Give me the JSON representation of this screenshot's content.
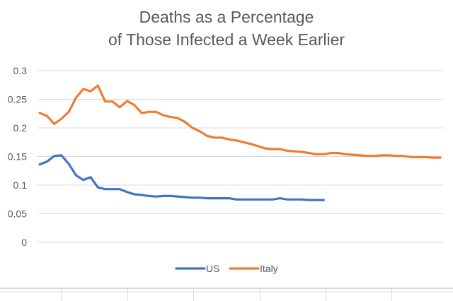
{
  "chart_data": {
    "type": "line",
    "title": "Deaths as a Percentage of Those Infected a Week Earlier",
    "title_lines": [
      "Deaths as a Percentage",
      "of Those Infected a Week Earlier"
    ],
    "xlabel": "",
    "ylabel": "",
    "ylim": [
      0,
      0.3
    ],
    "yticks": [
      "0",
      "0.05",
      "0.1",
      "0.15",
      "0.2",
      "0.25",
      "0.3"
    ],
    "ytick_values": [
      0,
      0.05,
      0.1,
      0.15,
      0.2,
      0.25,
      0.3
    ],
    "grid": true,
    "legend_position": "bottom",
    "x_count": 56,
    "series": [
      {
        "name": "US",
        "color": "#4472C4",
        "values": [
          0.136,
          0.141,
          0.151,
          0.152,
          0.137,
          0.117,
          0.109,
          0.114,
          0.096,
          0.093,
          0.093,
          0.093,
          0.088,
          0.084,
          0.083,
          0.081,
          0.08,
          0.081,
          0.081,
          0.08,
          0.079,
          0.078,
          0.078,
          0.077,
          0.077,
          0.077,
          0.077,
          0.075,
          0.075,
          0.075,
          0.075,
          0.075,
          0.075,
          0.077,
          0.075,
          0.075,
          0.075,
          0.074,
          0.074,
          0.074
        ]
      },
      {
        "name": "Italy",
        "color": "#ED7D31",
        "values": [
          0.226,
          0.221,
          0.207,
          0.216,
          0.228,
          0.253,
          0.268,
          0.264,
          0.274,
          0.246,
          0.246,
          0.236,
          0.247,
          0.24,
          0.226,
          0.228,
          0.228,
          0.222,
          0.219,
          0.217,
          0.21,
          0.2,
          0.194,
          0.186,
          0.183,
          0.183,
          0.18,
          0.178,
          0.175,
          0.172,
          0.168,
          0.164,
          0.163,
          0.163,
          0.16,
          0.159,
          0.158,
          0.156,
          0.154,
          0.154,
          0.156,
          0.156,
          0.154,
          0.153,
          0.152,
          0.151,
          0.151,
          0.152,
          0.152,
          0.151,
          0.151,
          0.149,
          0.149,
          0.149,
          0.148,
          0.148
        ]
      }
    ]
  }
}
